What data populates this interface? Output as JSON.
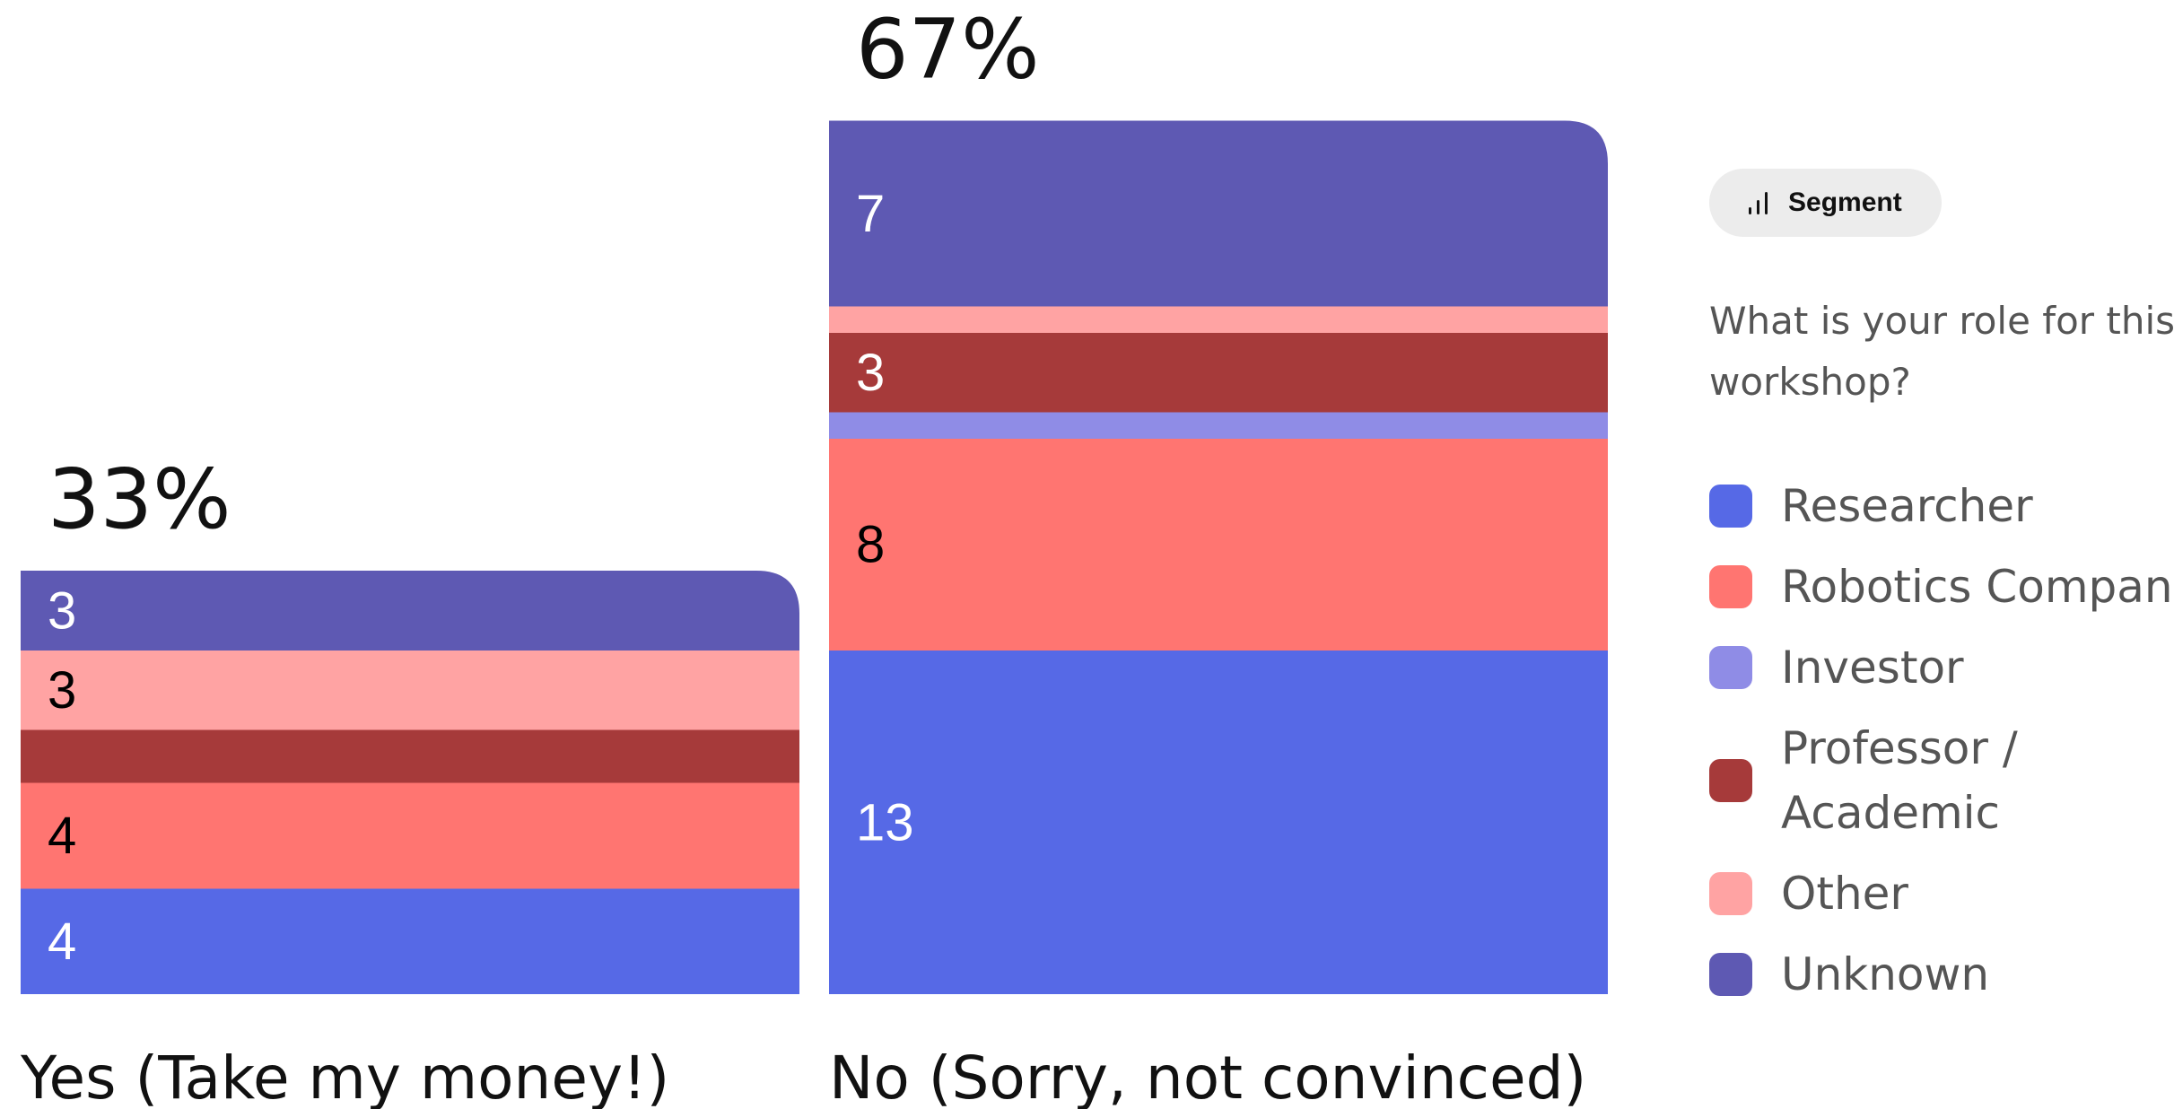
{
  "chart_data": {
    "type": "bar",
    "stacked": true,
    "categories": [
      "Yes (Take my money!)",
      "No (Sorry, not convinced)"
    ],
    "percent_labels": [
      "33%",
      "67%"
    ],
    "series": [
      {
        "name": "Researcher",
        "color": "#5669E6",
        "values": [
          4,
          13
        ],
        "labels": [
          "4",
          "13"
        ]
      },
      {
        "name": "Robotics Company",
        "color": "#FF7571",
        "values": [
          4,
          8
        ],
        "labels": [
          "4",
          "8"
        ]
      },
      {
        "name": "Investor",
        "color": "#8F8CE6",
        "values": [
          0,
          1
        ],
        "labels": [
          "",
          ""
        ]
      },
      {
        "name": "Professor / Academic",
        "color": "#A63A3A",
        "values": [
          2,
          3
        ],
        "labels": [
          "",
          "3"
        ]
      },
      {
        "name": "Other",
        "color": "#FFA3A3",
        "values": [
          3,
          1
        ],
        "labels": [
          "3",
          ""
        ]
      },
      {
        "name": "Unknown",
        "color": "#5E59B3",
        "values": [
          3,
          7
        ],
        "labels": [
          "3",
          "7"
        ]
      }
    ],
    "segment_label_colors": [
      "#FFFFFF",
      "#000000",
      "#000000",
      "#FFFFFF",
      "#000000",
      "#FFFFFF"
    ],
    "legend_placement": "right",
    "grid": false
  },
  "legend": {
    "segment_button_label": "Segment",
    "segment_icon": "bar-chart-icon",
    "question": "What is your role for this workshop?"
  }
}
